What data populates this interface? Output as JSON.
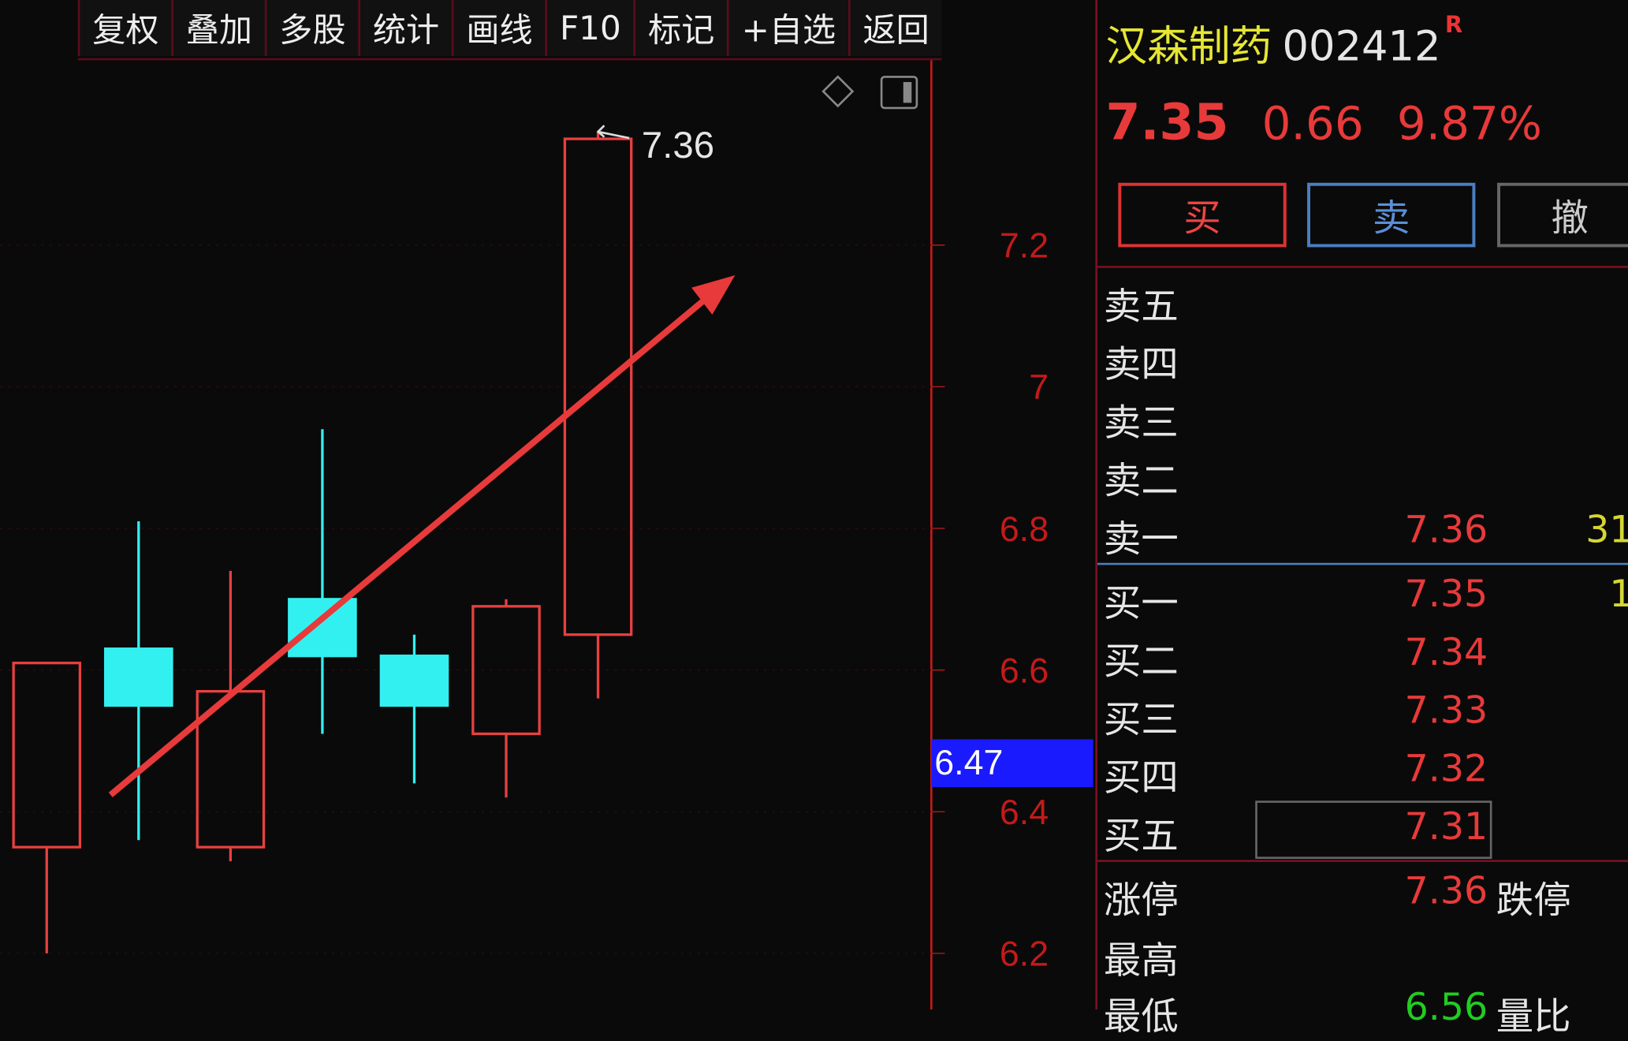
{
  "toolbar": {
    "items": [
      "复权",
      "叠加",
      "多股",
      "统计",
      "画线",
      "F10",
      "标记",
      "+自选",
      "返回"
    ]
  },
  "stock": {
    "name": "汉森制药",
    "code": "002412",
    "badge": "R",
    "price": "7.35",
    "change": "0.66",
    "change_pct": "9.87%"
  },
  "actions": {
    "buy": "买",
    "sell": "卖",
    "cancel": "撤"
  },
  "asks": [
    {
      "label": "卖五",
      "price": "",
      "vol": ""
    },
    {
      "label": "卖四",
      "price": "",
      "vol": ""
    },
    {
      "label": "卖三",
      "price": "",
      "vol": ""
    },
    {
      "label": "卖二",
      "price": "",
      "vol": ""
    },
    {
      "label": "卖一",
      "price": "7.36",
      "vol": "31"
    }
  ],
  "bids": [
    {
      "label": "买一",
      "price": "7.35",
      "vol": "1"
    },
    {
      "label": "买二",
      "price": "7.34",
      "vol": ""
    },
    {
      "label": "买三",
      "price": "7.33",
      "vol": ""
    },
    {
      "label": "买四",
      "price": "7.32",
      "vol": ""
    },
    {
      "label": "买五",
      "price": "7.31",
      "vol": ""
    }
  ],
  "stats": {
    "limit_up_label": "涨停",
    "limit_up": "7.36",
    "limit_down_label": "跌停",
    "high_label": "最高",
    "low_label": "最低",
    "low": "6.56",
    "other_label": "量比"
  },
  "colors": {
    "up": "#e84040",
    "down": "#33f0f0",
    "axis": "#c41a1a",
    "cursor_bg": "#1a1aff",
    "name": "#e6e633"
  },
  "chart_data": {
    "type": "candlestick",
    "y_ticks": [
      7.2,
      7.0,
      6.8,
      6.6,
      6.4,
      6.2
    ],
    "ylim": [
      6.15,
      7.42
    ],
    "candles": [
      {
        "open": 6.35,
        "close": 6.61,
        "high": 6.61,
        "low": 6.2
      },
      {
        "open": 6.63,
        "close": 6.55,
        "high": 6.81,
        "low": 6.36
      },
      {
        "open": 6.35,
        "close": 6.57,
        "high": 6.74,
        "low": 6.33
      },
      {
        "open": 6.7,
        "close": 6.62,
        "high": 6.94,
        "low": 6.51
      },
      {
        "open": 6.62,
        "close": 6.55,
        "high": 6.65,
        "low": 6.44
      },
      {
        "open": 6.51,
        "close": 6.69,
        "high": 6.7,
        "low": 6.42
      },
      {
        "open": 6.65,
        "close": 7.35,
        "high": 7.36,
        "low": 6.56
      }
    ],
    "high_annotation": "7.36",
    "cursor_price": "6.47",
    "trend_arrow": {
      "from_candle": 1,
      "from_price": 6.5,
      "to_candle": 7.5,
      "to_price": 7.18
    }
  }
}
